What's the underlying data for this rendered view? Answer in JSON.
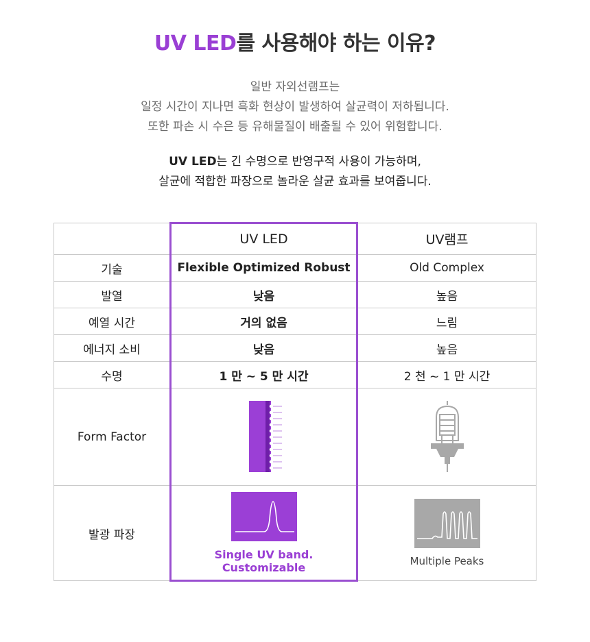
{
  "header": {
    "title_accent": "UV LED",
    "title_rest": "를 사용해야 하는 이유?"
  },
  "intro": {
    "line1": "일반 자외선램프는",
    "line2": "일정 시간이 지나면 흑화 현상이 발생하여 살균력이 저하됩니다.",
    "line3": "또한 파손 시 수은 등 유해물질이 배출될 수 있어 위험합니다."
  },
  "intro2": {
    "line1_bold": "UV LED",
    "line1_rest": "는 긴 수명으로 반영구적 사용이 가능하며,",
    "line2": "살균에 적합한 파장으로 놀라운 살균 효과를 보여줍니다."
  },
  "table": {
    "col_led": "UV LED",
    "col_lamp": "UV램프",
    "rows": [
      {
        "label": "기술",
        "led": "Flexible Optimized Robust",
        "lamp": "Old Complex"
      },
      {
        "label": "발열",
        "led": "낮음",
        "lamp": "높음"
      },
      {
        "label": "예열 시간",
        "led": "거의 없음",
        "lamp": "느림"
      },
      {
        "label": "에너지 소비",
        "led": "낮음",
        "lamp": "높음"
      },
      {
        "label": "수명",
        "led": "1 만 ~ 5 만 시간",
        "lamp": "2 천 ~ 1 만 시간"
      }
    ],
    "form_factor_label": "Form Factor",
    "wavelength_label": "발광 파장",
    "led_wave_caption": "Single UV band. Customizable",
    "lamp_wave_caption": "Multiple Peaks"
  },
  "colors": {
    "accent": "#9a3fd4",
    "lamp_gray": "#a8a8a8"
  }
}
